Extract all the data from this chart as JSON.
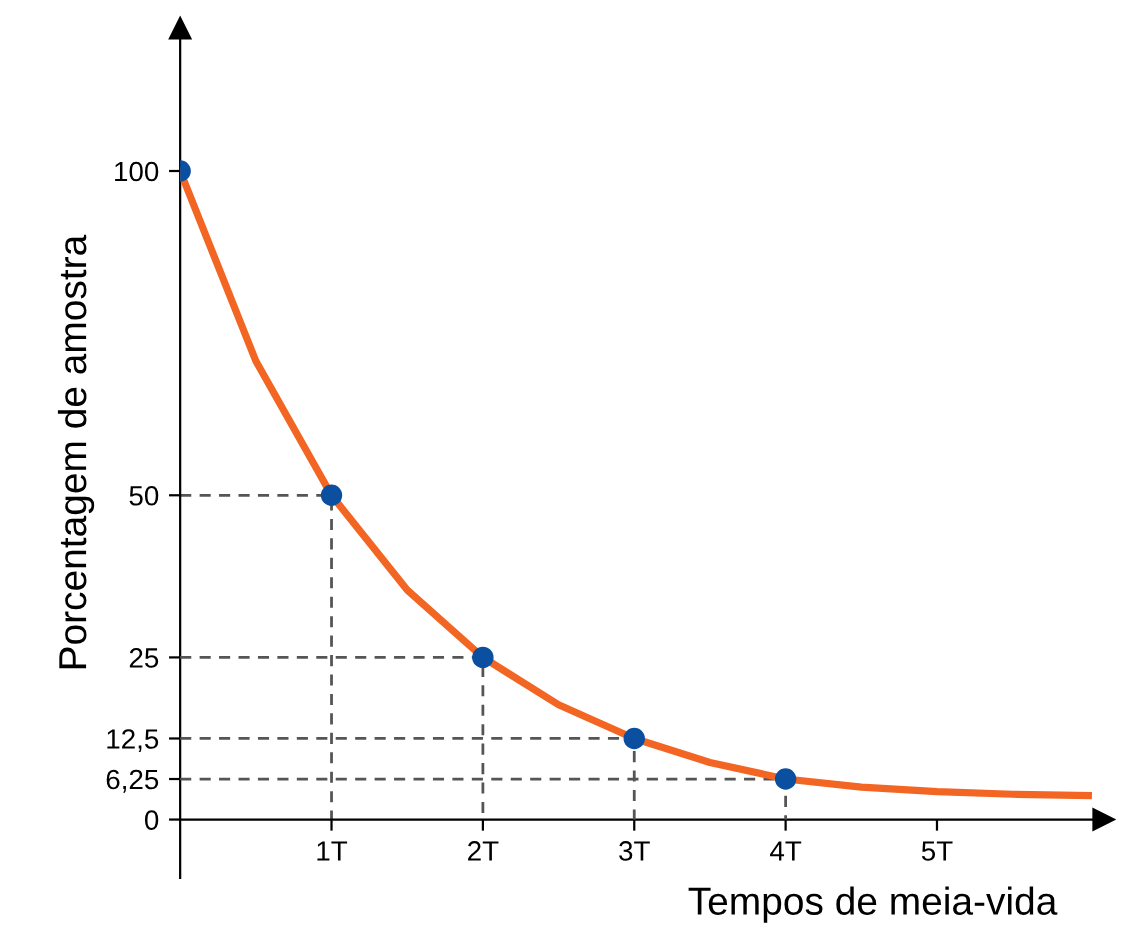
{
  "chart_data": {
    "type": "line",
    "xlabel": "Tempos de meia-vida",
    "ylabel": "Porcentagem de amostra",
    "xlim": [
      0,
      6.1
    ],
    "ylim": [
      -9,
      122
    ],
    "xticks": [
      {
        "value": 1,
        "label": "1T"
      },
      {
        "value": 2,
        "label": "2T"
      },
      {
        "value": 3,
        "label": "3T"
      },
      {
        "value": 4,
        "label": "4T"
      },
      {
        "value": 5,
        "label": "5T"
      }
    ],
    "yticks": [
      0,
      {
        "value": 6.25,
        "label": "6,25"
      },
      {
        "value": 12.5,
        "label": "12,5"
      },
      25,
      50,
      100
    ],
    "grid": false,
    "legend": false,
    "series": [
      {
        "color": "#555555",
        "line_style": "dashed",
        "marker": "none",
        "x": [
          0,
          1,
          1
        ],
        "values": [
          50,
          50,
          0
        ]
      },
      {
        "color": "#555555",
        "line_style": "dashed",
        "marker": "none",
        "x": [
          0,
          2,
          2
        ],
        "values": [
          25,
          25,
          0
        ]
      },
      {
        "color": "#555555",
        "line_style": "dashed",
        "marker": "none",
        "x": [
          0,
          3,
          3
        ],
        "values": [
          12.5,
          12.5,
          0
        ]
      },
      {
        "color": "#555555",
        "line_style": "dashed",
        "marker": "none",
        "x": [
          0,
          4,
          4
        ],
        "values": [
          6.25,
          6.25,
          0
        ]
      },
      {
        "color": "#f26522",
        "line_style": "solid",
        "marker": "none",
        "x": [
          0,
          0.5,
          1,
          1.5,
          2,
          2.5,
          3,
          3.5,
          4,
          4.5,
          5,
          5.5,
          6
        ],
        "values": [
          100,
          70.7,
          50,
          35.4,
          25,
          17.7,
          12.5,
          8.8,
          6.25,
          5.0,
          4.3,
          3.9,
          3.7
        ]
      },
      {
        "type": "scatter",
        "color": "#0b4fa0",
        "marker": "circle",
        "x": [
          0,
          1,
          2,
          3,
          4
        ],
        "values": [
          100,
          50,
          25,
          12.5,
          6.25
        ]
      }
    ]
  }
}
